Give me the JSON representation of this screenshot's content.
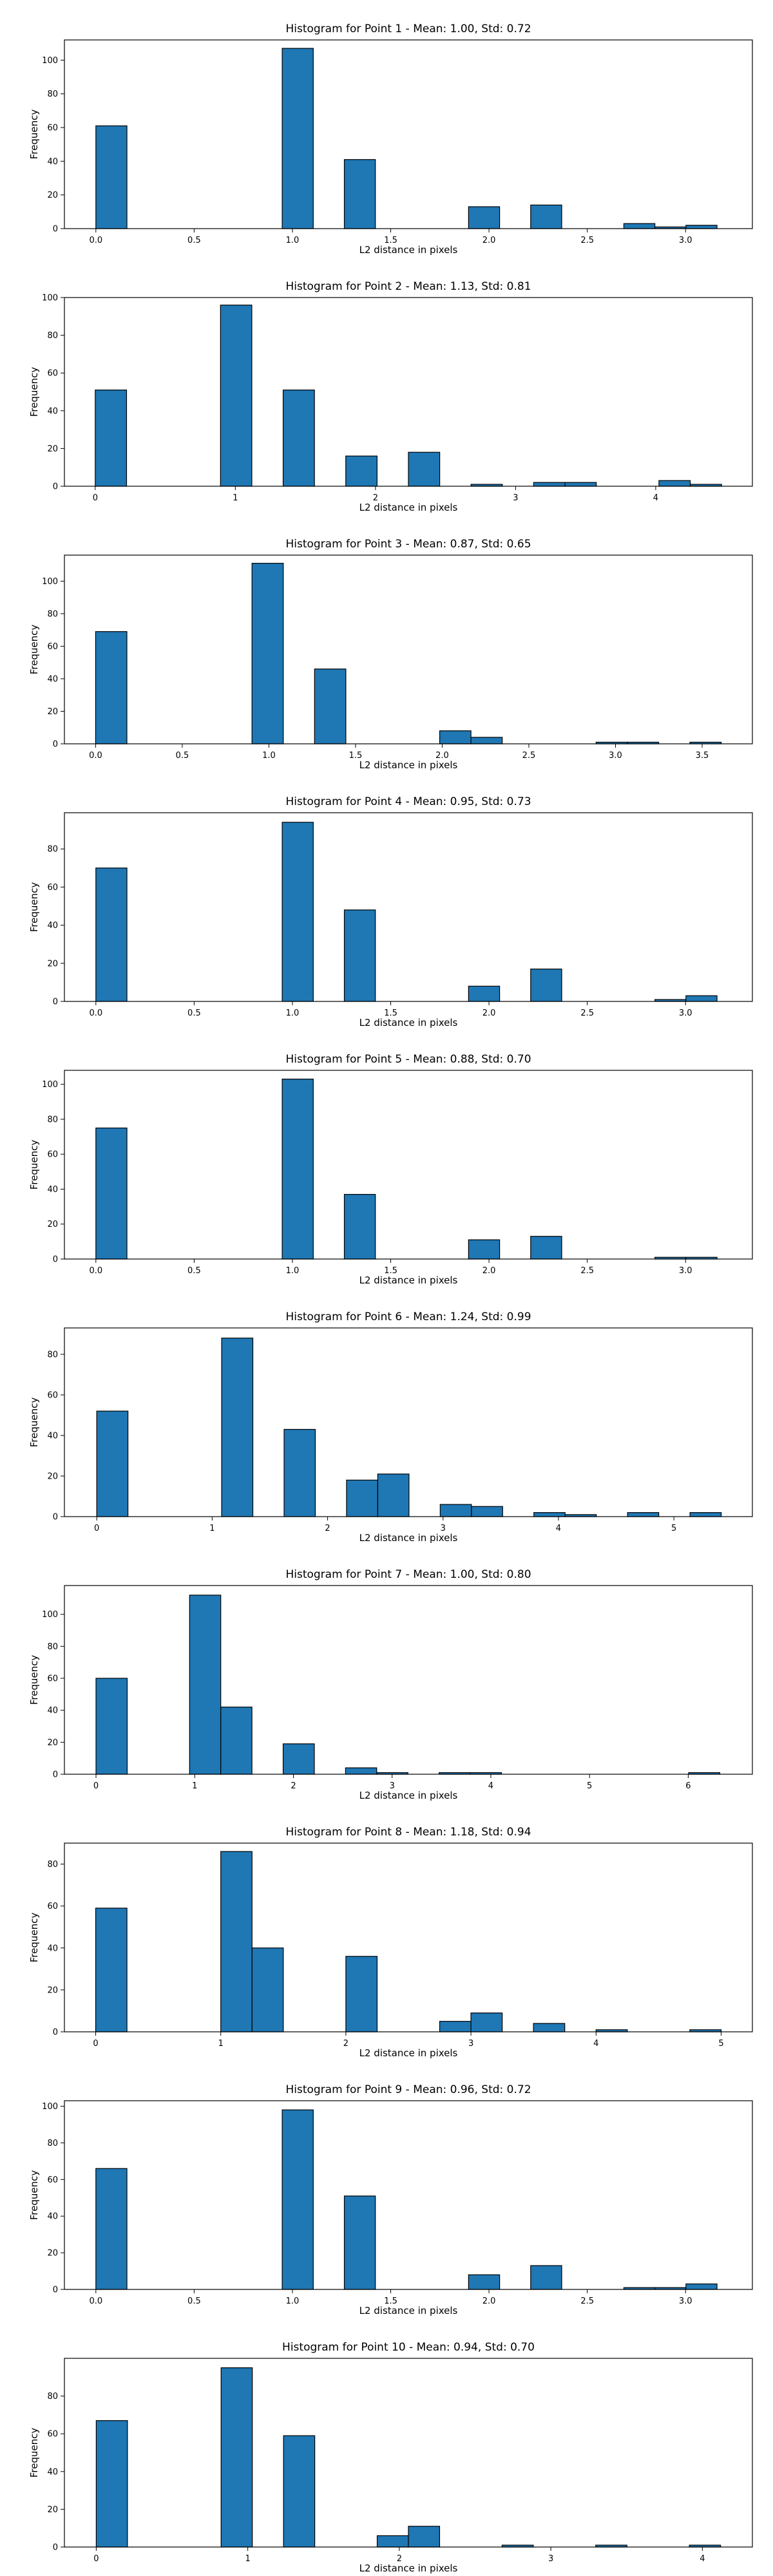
{
  "chart_data": [
    {
      "type": "bar",
      "title": "Histogram for Point 1 - Mean: 1.00, Std: 0.72",
      "xlabel": "L2 distance in pixels",
      "ylabel": "Frequency",
      "xlim": [
        -0.16,
        3.34
      ],
      "ylim": [
        0,
        112
      ],
      "xticks": [
        0.0,
        0.5,
        1.0,
        1.5,
        2.0,
        2.5,
        3.0
      ],
      "xtick_labels": [
        "0.0",
        "0.5",
        "1.0",
        "1.5",
        "2.0",
        "2.5",
        "3.0"
      ],
      "yticks": [
        0,
        20,
        40,
        60,
        80,
        100
      ],
      "bin_range": [
        0,
        3.16
      ],
      "bins": 20,
      "counts": [
        61,
        0,
        0,
        0,
        0,
        0,
        107,
        0,
        41,
        0,
        0,
        0,
        13,
        0,
        14,
        0,
        0,
        3,
        1,
        2
      ]
    },
    {
      "type": "bar",
      "title": "Histogram for Point 2 - Mean: 1.13, Std: 0.81",
      "xlabel": "L2 distance in pixels",
      "ylabel": "Frequency",
      "xlim": [
        -0.22,
        4.69
      ],
      "ylim": [
        0,
        100
      ],
      "xticks": [
        0,
        1,
        2,
        3,
        4
      ],
      "xtick_labels": [
        "0",
        "1",
        "2",
        "3",
        "4"
      ],
      "yticks": [
        0,
        20,
        40,
        60,
        80,
        100
      ],
      "bin_range": [
        0,
        4.47
      ],
      "bins": 20,
      "counts": [
        51,
        0,
        0,
        0,
        96,
        0,
        51,
        0,
        16,
        0,
        18,
        0,
        1,
        0,
        2,
        2,
        0,
        0,
        3,
        1
      ]
    },
    {
      "type": "bar",
      "title": "Histogram for Point 3 - Mean: 0.87, Std: 0.65",
      "xlabel": "L2 distance in pixels",
      "ylabel": "Frequency",
      "xlim": [
        -0.18,
        3.79
      ],
      "ylim": [
        0,
        116
      ],
      "xticks": [
        0.0,
        0.5,
        1.0,
        1.5,
        2.0,
        2.5,
        3.0,
        3.5
      ],
      "xtick_labels": [
        "0.0",
        "0.5",
        "1.0",
        "1.5",
        "2.0",
        "2.5",
        "3.0",
        "3.5"
      ],
      "yticks": [
        0,
        20,
        40,
        60,
        80,
        100
      ],
      "bin_range": [
        0,
        3.61
      ],
      "bins": 20,
      "counts": [
        69,
        0,
        0,
        0,
        0,
        111,
        0,
        46,
        0,
        0,
        0,
        8,
        4,
        0,
        0,
        0,
        1,
        1,
        0,
        1
      ]
    },
    {
      "type": "bar",
      "title": "Histogram for Point 4 - Mean: 0.95, Std: 0.73",
      "xlabel": "L2 distance in pixels",
      "ylabel": "Frequency",
      "xlim": [
        -0.16,
        3.34
      ],
      "ylim": [
        0,
        99
      ],
      "xticks": [
        0.0,
        0.5,
        1.0,
        1.5,
        2.0,
        2.5,
        3.0
      ],
      "xtick_labels": [
        "0.0",
        "0.5",
        "1.0",
        "1.5",
        "2.0",
        "2.5",
        "3.0"
      ],
      "yticks": [
        0,
        20,
        40,
        60,
        80
      ],
      "bin_range": [
        0,
        3.16
      ],
      "bins": 20,
      "counts": [
        70,
        0,
        0,
        0,
        0,
        0,
        94,
        0,
        48,
        0,
        0,
        0,
        8,
        0,
        17,
        0,
        0,
        0,
        1,
        3
      ]
    },
    {
      "type": "bar",
      "title": "Histogram for Point 5 - Mean: 0.88, Std: 0.70",
      "xlabel": "L2 distance in pixels",
      "ylabel": "Frequency",
      "xlim": [
        -0.16,
        3.34
      ],
      "ylim": [
        0,
        108
      ],
      "xticks": [
        0.0,
        0.5,
        1.0,
        1.5,
        2.0,
        2.5,
        3.0
      ],
      "xtick_labels": [
        "0.0",
        "0.5",
        "1.0",
        "1.5",
        "2.0",
        "2.5",
        "3.0"
      ],
      "yticks": [
        0,
        20,
        40,
        60,
        80,
        100
      ],
      "bin_range": [
        0,
        3.16
      ],
      "bins": 20,
      "counts": [
        75,
        0,
        0,
        0,
        0,
        0,
        103,
        0,
        37,
        0,
        0,
        0,
        11,
        0,
        13,
        0,
        0,
        0,
        1,
        1
      ]
    },
    {
      "type": "bar",
      "title": "Histogram for Point 6 - Mean: 1.24, Std: 0.99",
      "xlabel": "L2 distance in pixels",
      "ylabel": "Frequency",
      "xlim": [
        -0.28,
        5.68
      ],
      "ylim": [
        0,
        93
      ],
      "xticks": [
        0,
        1,
        2,
        3,
        4,
        5
      ],
      "xtick_labels": [
        "0",
        "1",
        "2",
        "3",
        "4",
        "5"
      ],
      "yticks": [
        0,
        20,
        40,
        60,
        80
      ],
      "bin_range": [
        0,
        5.41
      ],
      "bins": 20,
      "counts": [
        52,
        0,
        0,
        0,
        88,
        0,
        43,
        0,
        18,
        21,
        0,
        6,
        5,
        0,
        2,
        1,
        0,
        2,
        0,
        2
      ]
    },
    {
      "type": "bar",
      "title": "Histogram for Point 7 - Mean: 1.00, Std: 0.80",
      "xlabel": "L2 distance in pixels",
      "ylabel": "Frequency",
      "xlim": [
        -0.32,
        6.65
      ],
      "ylim": [
        0,
        118
      ],
      "xticks": [
        0,
        1,
        2,
        3,
        4,
        5,
        6
      ],
      "xtick_labels": [
        "0",
        "1",
        "2",
        "3",
        "4",
        "5",
        "6"
      ],
      "yticks": [
        0,
        20,
        40,
        60,
        80,
        100
      ],
      "bin_range": [
        0,
        6.32
      ],
      "bins": 20,
      "counts": [
        60,
        0,
        0,
        112,
        42,
        0,
        19,
        0,
        4,
        1,
        0,
        1,
        1,
        0,
        0,
        0,
        0,
        0,
        0,
        1
      ]
    },
    {
      "type": "bar",
      "title": "Histogram for Point 8 - Mean: 1.18, Std: 0.94",
      "xlabel": "L2 distance in pixels",
      "ylabel": "Frequency",
      "xlim": [
        -0.25,
        5.25
      ],
      "ylim": [
        0,
        90
      ],
      "xticks": [
        0,
        1,
        2,
        3,
        4,
        5
      ],
      "xtick_labels": [
        "0",
        "1",
        "2",
        "3",
        "4",
        "5"
      ],
      "yticks": [
        0,
        20,
        40,
        60,
        80
      ],
      "bin_range": [
        0,
        5.0
      ],
      "bins": 20,
      "counts": [
        59,
        0,
        0,
        0,
        86,
        40,
        0,
        0,
        36,
        0,
        0,
        5,
        9,
        0,
        4,
        0,
        1,
        0,
        0,
        1
      ]
    },
    {
      "type": "bar",
      "title": "Histogram for Point 9 - Mean: 0.96, Std: 0.72",
      "xlabel": "L2 distance in pixels",
      "ylabel": "Frequency",
      "xlim": [
        -0.16,
        3.34
      ],
      "ylim": [
        0,
        103
      ],
      "xticks": [
        0.0,
        0.5,
        1.0,
        1.5,
        2.0,
        2.5,
        3.0
      ],
      "xtick_labels": [
        "0.0",
        "0.5",
        "1.0",
        "1.5",
        "2.0",
        "2.5",
        "3.0"
      ],
      "yticks": [
        0,
        20,
        40,
        60,
        80,
        100
      ],
      "bin_range": [
        0,
        3.16
      ],
      "bins": 20,
      "counts": [
        66,
        0,
        0,
        0,
        0,
        0,
        98,
        0,
        51,
        0,
        0,
        0,
        8,
        0,
        13,
        0,
        0,
        1,
        1,
        3
      ]
    },
    {
      "type": "bar",
      "title": "Histogram for Point 10 - Mean: 0.94, Std: 0.70",
      "xlabel": "L2 distance in pixels",
      "ylabel": "Frequency",
      "xlim": [
        -0.21,
        4.33
      ],
      "ylim": [
        0,
        100
      ],
      "xticks": [
        0,
        1,
        2,
        3,
        4
      ],
      "xtick_labels": [
        "0",
        "1",
        "2",
        "3",
        "4"
      ],
      "yticks": [
        0,
        20,
        40,
        60,
        80
      ],
      "bin_range": [
        0,
        4.12
      ],
      "bins": 20,
      "counts": [
        67,
        0,
        0,
        0,
        95,
        0,
        59,
        0,
        0,
        6,
        11,
        0,
        0,
        1,
        0,
        0,
        1,
        0,
        0,
        1
      ]
    }
  ],
  "colors": {
    "bar_fill": "#1f77b4",
    "bar_edge": "#000000",
    "axes": "#000000",
    "background": "#ffffff"
  }
}
